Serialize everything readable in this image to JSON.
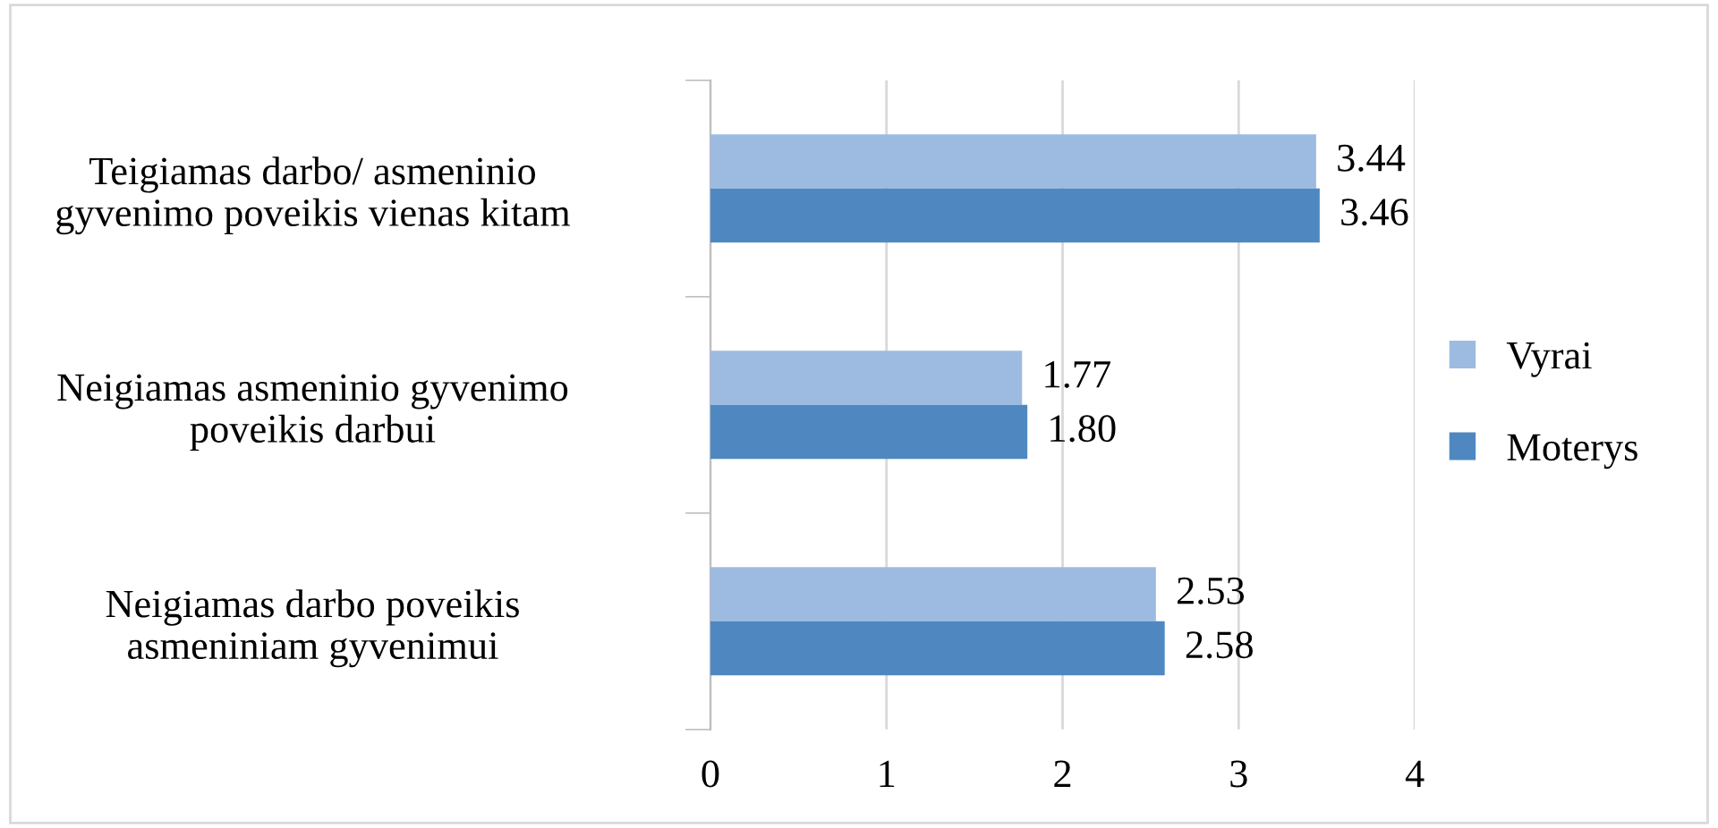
{
  "chart_data": {
    "type": "bar",
    "orientation": "horizontal",
    "categories": [
      "Teigiamas darbo/ asmeninio\ngyvenimo poveikis vienas kitam",
      "Neigiamas asmeninio gyvenimo\npoveikis darbui",
      "Neigiamas darbo poveikis\nasmeniniam gyvenimui"
    ],
    "series": [
      {
        "name": "Vyrai",
        "color": "#9dbbe0",
        "values": [
          3.44,
          1.77,
          2.53
        ],
        "value_labels": [
          "3.44",
          "1.77",
          "2.53"
        ]
      },
      {
        "name": "Moterys",
        "color": "#4f88c0",
        "values": [
          3.46,
          1.8,
          2.58
        ],
        "value_labels": [
          "3.46",
          "1.80",
          "2.58"
        ]
      }
    ],
    "xlim": [
      0,
      4
    ],
    "xticks": [
      0,
      1,
      2,
      3,
      4
    ],
    "grid": "x",
    "legend": "right"
  }
}
